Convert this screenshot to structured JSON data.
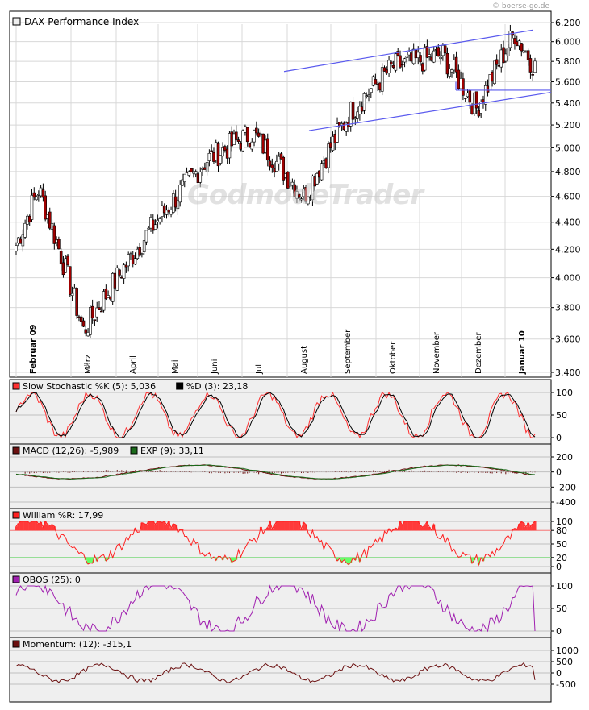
{
  "copyright": "© boerse-go.de",
  "watermark": "GodmodeTrader",
  "colors": {
    "candle_up": "#ffffff",
    "candle_down": "#a00000",
    "trend": "#5a5aee",
    "grid": "#d8d8d8",
    "panel_bg": "#efefef",
    "stoch_k": "#ff3030",
    "stoch_d": "#000000",
    "macd": "#6b1010",
    "exp": "#1a6a1a",
    "william": "#ff2020",
    "william_fill_top": "#ff3a3a",
    "william_fill_bottom": "#66ff66",
    "obos": "#a020b0",
    "momentum": "#6b1010"
  },
  "chart_data": [
    {
      "type": "candlestick",
      "title": "DAX Performance Index",
      "ylim": [
        3400,
        6200
      ],
      "scale": "log",
      "yticks": [
        "6.200",
        "6.000",
        "5.800",
        "5.600",
        "5.400",
        "5.200",
        "5.000",
        "4.800",
        "4.600",
        "4.400",
        "4.200",
        "4.000",
        "3.800",
        "3.600",
        "3.400"
      ],
      "ytick_values": [
        6200,
        6000,
        5800,
        5600,
        5400,
        5200,
        5000,
        4800,
        4600,
        4400,
        4200,
        4000,
        3800,
        3600,
        3400
      ],
      "months": [
        "Februar 09",
        "März",
        "April",
        "Mai",
        "Juni",
        "Juli",
        "August",
        "September",
        "Oktober",
        "November",
        "Dezember",
        "Januar 10"
      ],
      "key_closes": [
        {
          "date": "Februar 09",
          "value": 4230
        },
        {
          "date": "Februar 09",
          "value": 4660
        },
        {
          "date": "März",
          "value": 3650
        },
        {
          "date": "April",
          "value": 4350
        },
        {
          "date": "Mai",
          "value": 4900
        },
        {
          "date": "Juni",
          "value": 5130
        },
        {
          "date": "Juli",
          "value": 4600
        },
        {
          "date": "August",
          "value": 5350
        },
        {
          "date": "September",
          "value": 5750
        },
        {
          "date": "Oktober",
          "value": 5860
        },
        {
          "date": "November",
          "value": 5350
        },
        {
          "date": "Dezember",
          "value": 5900
        },
        {
          "date": "Januar 10",
          "value": 6090
        },
        {
          "date": "Januar 10",
          "value": 5740
        }
      ],
      "trend_lines": [
        {
          "from": {
            "date": "August",
            "value": 5700
          },
          "to": {
            "date": "Januar 10",
            "value": 6120
          }
        },
        {
          "from": {
            "date": "August",
            "value": 5150
          },
          "to": {
            "date": "Januar 10",
            "value": 5500
          }
        },
        {
          "from": {
            "date": "Dezember",
            "value": 5520
          },
          "to": {
            "date": "Januar 10",
            "value": 5520
          }
        }
      ]
    },
    {
      "type": "line",
      "legend": [
        "Slow Stochastic %K (5): 5,036",
        "%D (3): 23,18"
      ],
      "ylim": [
        0,
        100
      ],
      "yticks": [
        "100",
        "50",
        "0"
      ],
      "series": [
        {
          "name": "Slow Stochastic %K (5)",
          "last": 5.036
        },
        {
          "name": "%D (3)",
          "last": 23.18
        }
      ]
    },
    {
      "type": "line",
      "legend": [
        "MACD (12,26): -5,989",
        "EXP (9): 33,11"
      ],
      "ylim": [
        -400,
        200
      ],
      "yticks": [
        "200",
        "0",
        "-200",
        "-400"
      ],
      "series": [
        {
          "name": "MACD (12,26)",
          "last": -5.989
        },
        {
          "name": "EXP (9)",
          "last": 33.11
        }
      ]
    },
    {
      "type": "area",
      "legend": [
        "William %R: 17,99"
      ],
      "ylim": [
        0,
        100
      ],
      "yticks": [
        "100",
        "80",
        "50",
        "20",
        "0"
      ],
      "series": [
        {
          "name": "William %R",
          "last": 17.99
        }
      ]
    },
    {
      "type": "line",
      "legend": [
        "OBOS (25): 0"
      ],
      "ylim": [
        0,
        100
      ],
      "yticks": [
        "100",
        "50",
        "0"
      ],
      "series": [
        {
          "name": "OBOS (25)",
          "last": 0
        }
      ]
    },
    {
      "type": "line",
      "legend": [
        "Momentum: (12): -315,1"
      ],
      "ylim": [
        -1000,
        1000
      ],
      "yticks": [
        "1000",
        "500",
        "0",
        "-500"
      ],
      "series": [
        {
          "name": "Momentum: (12)",
          "last": -315.1
        }
      ]
    }
  ]
}
